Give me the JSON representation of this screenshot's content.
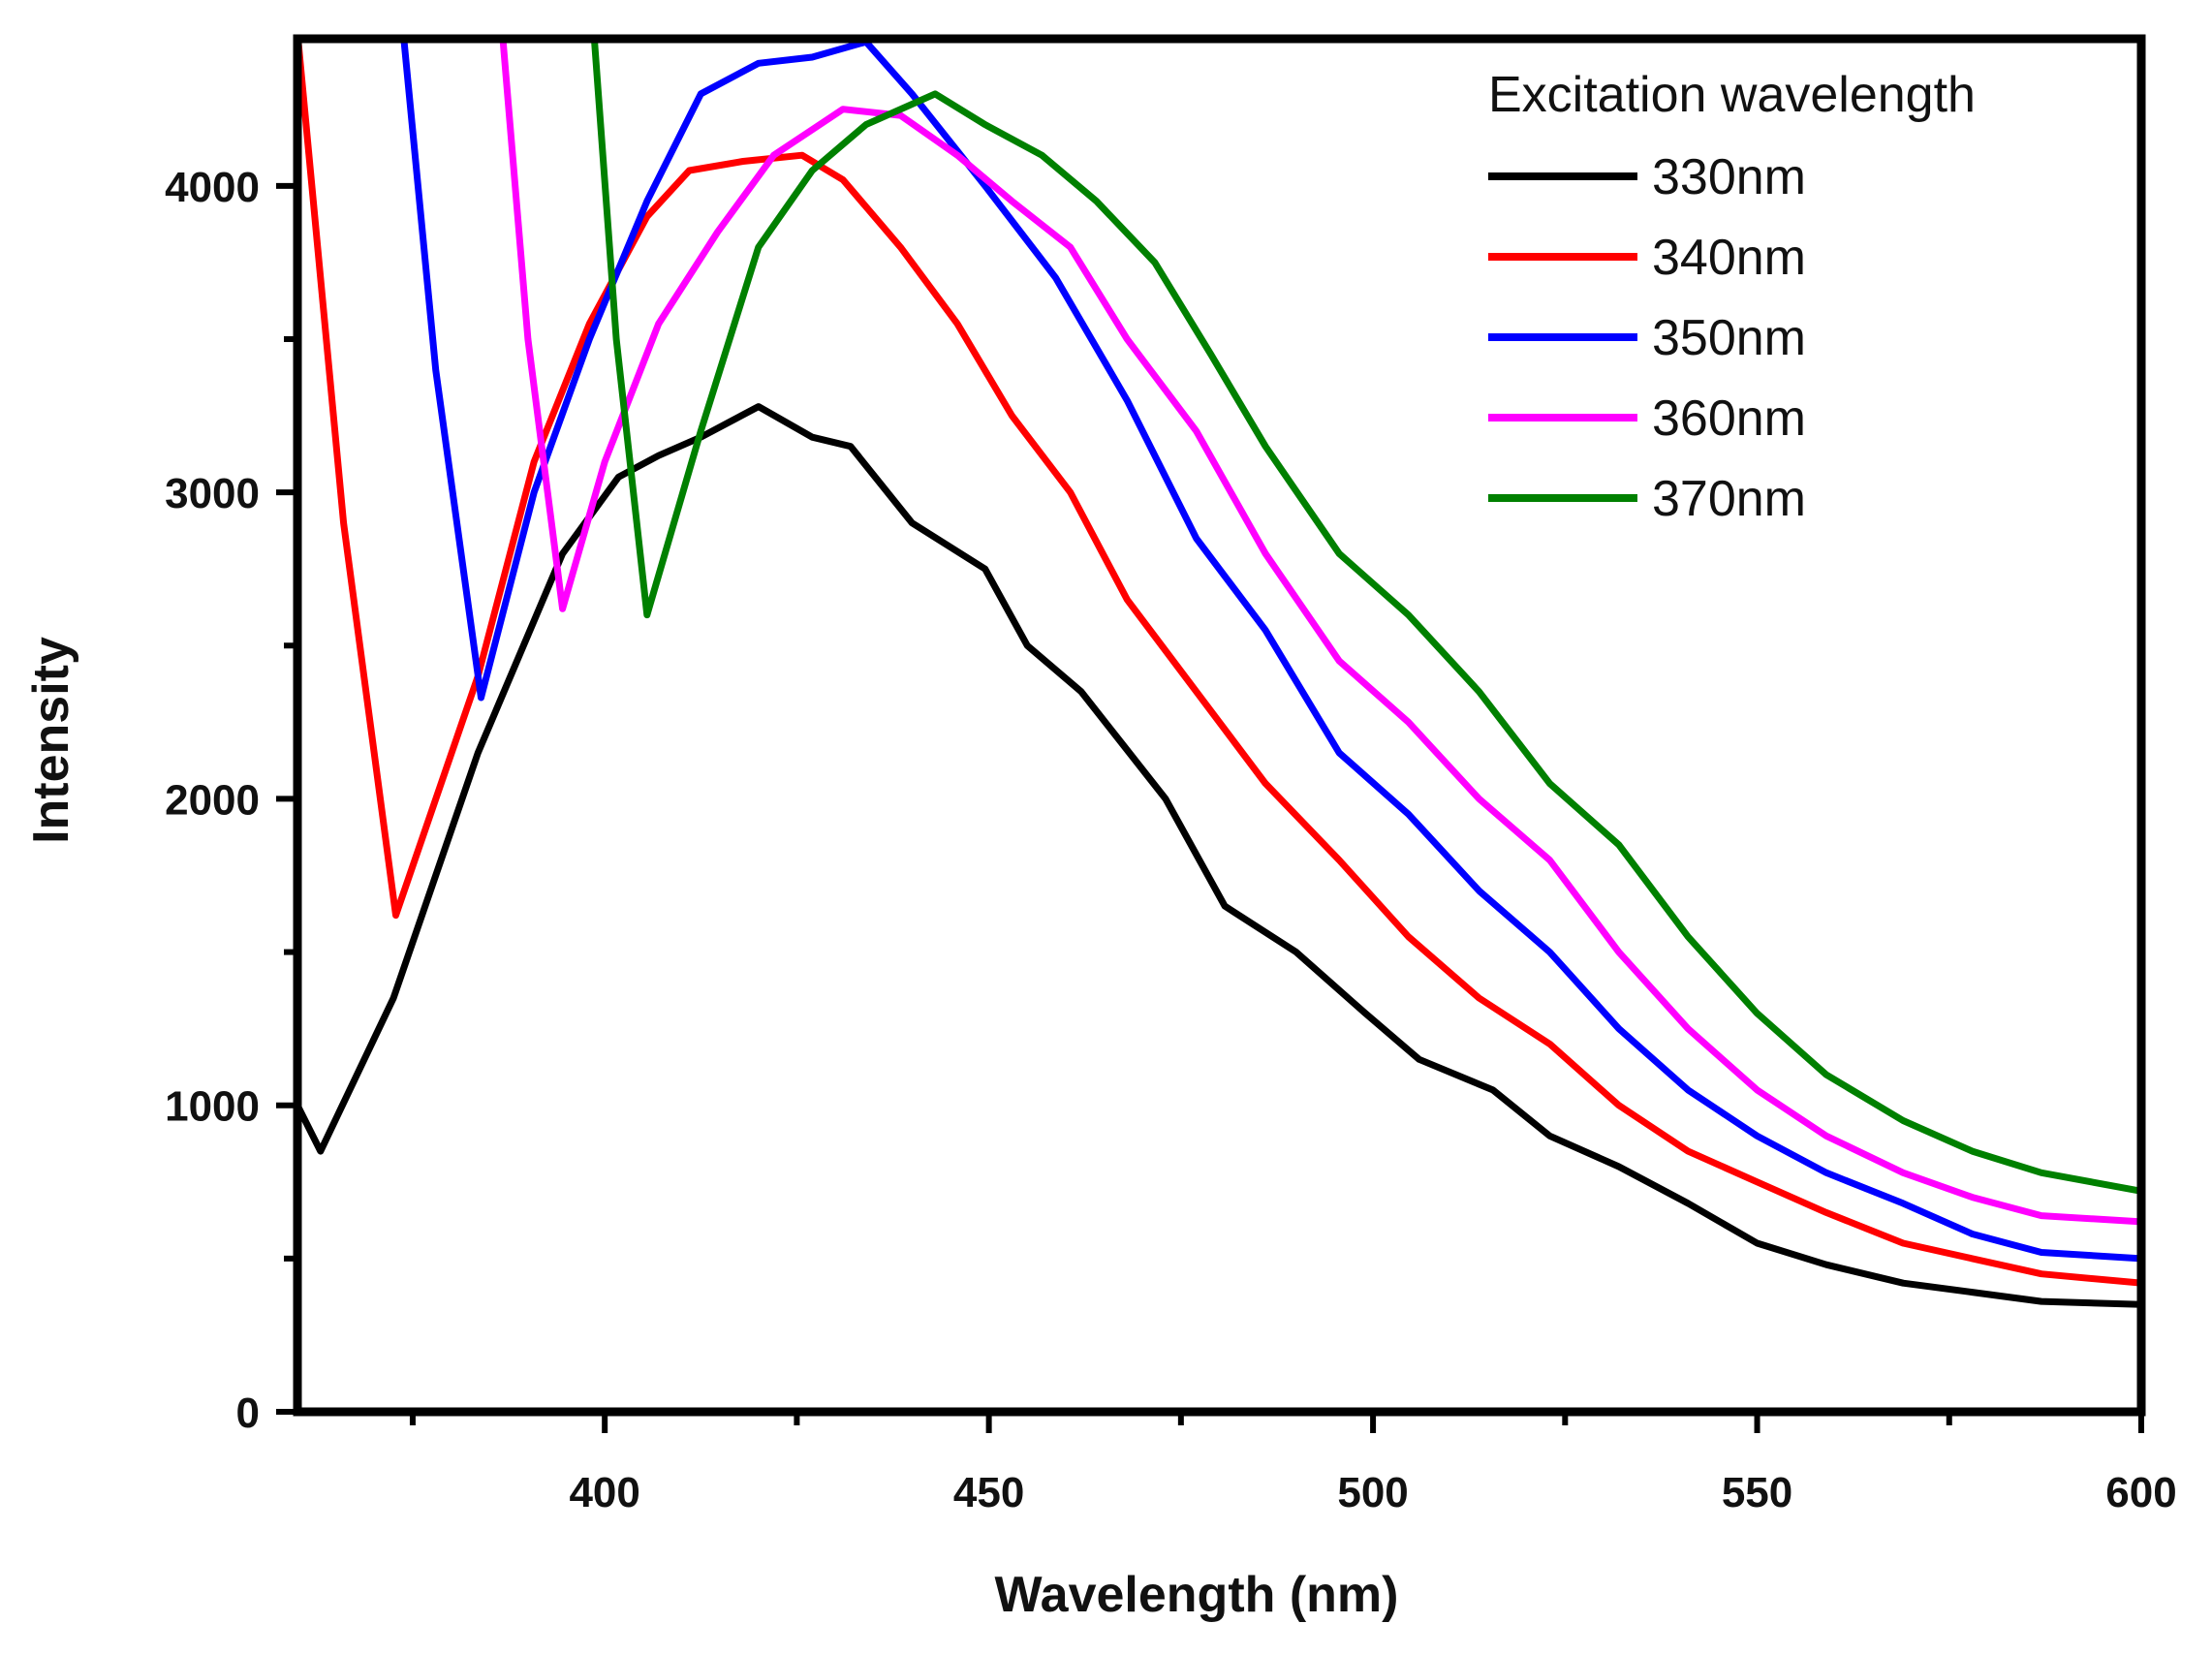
{
  "chart_data": {
    "type": "line",
    "title": "",
    "xlabel": "Wavelength (nm)",
    "ylabel": "Intensity",
    "xlim": [
      360,
      600
    ],
    "ylim": [
      0,
      4480
    ],
    "xticks": [
      400,
      450,
      500,
      550,
      600
    ],
    "yticks": [
      0,
      1000,
      2000,
      3000,
      4000
    ],
    "grid": false,
    "legend": {
      "title": "Excitation wavelength",
      "placement": "top-right"
    },
    "series": [
      {
        "name": "330nm",
        "color": "#000000",
        "x": [
          360,
          363,
          372.5,
          383.5,
          394.5,
          401.8,
          407,
          412.5,
          420,
          427,
          432,
          440,
          449.5,
          455,
          462,
          473,
          480.7,
          490,
          499,
          506,
          515.6,
          523,
          532,
          541,
          550,
          559,
          569,
          578,
          587,
          600
        ],
        "y": [
          1000,
          850,
          1350,
          2150,
          2800,
          3050,
          3120,
          3180,
          3280,
          3180,
          3150,
          2900,
          2750,
          2500,
          2350,
          2000,
          1650,
          1500,
          1300,
          1150,
          1050,
          900,
          800,
          680,
          550,
          480,
          420,
          390,
          360,
          350
        ]
      },
      {
        "name": "340nm",
        "color": "#ff0000",
        "x": [
          360,
          366,
          372.8,
          383.5,
          390.8,
          398,
          405.5,
          411,
          418,
          425.7,
          431,
          438.5,
          445.9,
          453,
          460.6,
          468,
          477,
          486,
          495.6,
          504.6,
          513.8,
          523,
          532,
          541,
          550,
          559,
          569,
          578,
          587,
          600
        ],
        "y": [
          4500,
          2900,
          1620,
          2400,
          3100,
          3550,
          3900,
          4050,
          4080,
          4100,
          4020,
          3800,
          3550,
          3250,
          3000,
          2650,
          2350,
          2050,
          1800,
          1550,
          1350,
          1200,
          1000,
          850,
          750,
          650,
          550,
          500,
          450,
          420
        ]
      },
      {
        "name": "350nm",
        "color": "#0000ff",
        "x": [
          373,
          378,
          383.9,
          390.8,
          398,
          405.5,
          412.5,
          420,
          427,
          434,
          440,
          449.5,
          458.7,
          468,
          477,
          486,
          495.6,
          504.6,
          513.8,
          523,
          532,
          541,
          550,
          559,
          569,
          578,
          587,
          600
        ],
        "y": [
          4700,
          3400,
          2330,
          3000,
          3500,
          3950,
          4300,
          4400,
          4420,
          4470,
          4300,
          4000,
          3700,
          3300,
          2850,
          2550,
          2150,
          1950,
          1700,
          1500,
          1250,
          1050,
          900,
          780,
          680,
          580,
          520,
          500
        ]
      },
      {
        "name": "360nm",
        "color": "#ff00ff",
        "x": [
          386,
          390,
          394.5,
          400,
          407,
          414.7,
          422,
          431,
          438.5,
          445.9,
          453,
          460.6,
          468,
          477,
          486,
          495.6,
          504.6,
          513.8,
          523,
          532,
          541,
          550,
          559,
          569,
          578,
          587,
          600
        ],
        "y": [
          4700,
          3500,
          2620,
          3100,
          3550,
          3850,
          4100,
          4250,
          4230,
          4100,
          3950,
          3800,
          3500,
          3200,
          2800,
          2450,
          2250,
          2000,
          1800,
          1500,
          1250,
          1050,
          900,
          780,
          700,
          640,
          620
        ]
      },
      {
        "name": "370nm",
        "color": "#008000",
        "x": [
          398,
          401.5,
          405.5,
          412.5,
          420,
          427,
          434,
          443,
          449.5,
          456.9,
          464,
          471.6,
          478.9,
          486,
          495.6,
          504.6,
          513.8,
          523,
          532,
          541,
          550,
          559,
          569,
          578,
          587,
          600
        ],
        "y": [
          4700,
          3500,
          2600,
          3200,
          3800,
          4050,
          4200,
          4300,
          4200,
          4100,
          3950,
          3750,
          3450,
          3150,
          2800,
          2600,
          2350,
          2050,
          1850,
          1550,
          1300,
          1100,
          950,
          850,
          780,
          720
        ]
      }
    ]
  }
}
